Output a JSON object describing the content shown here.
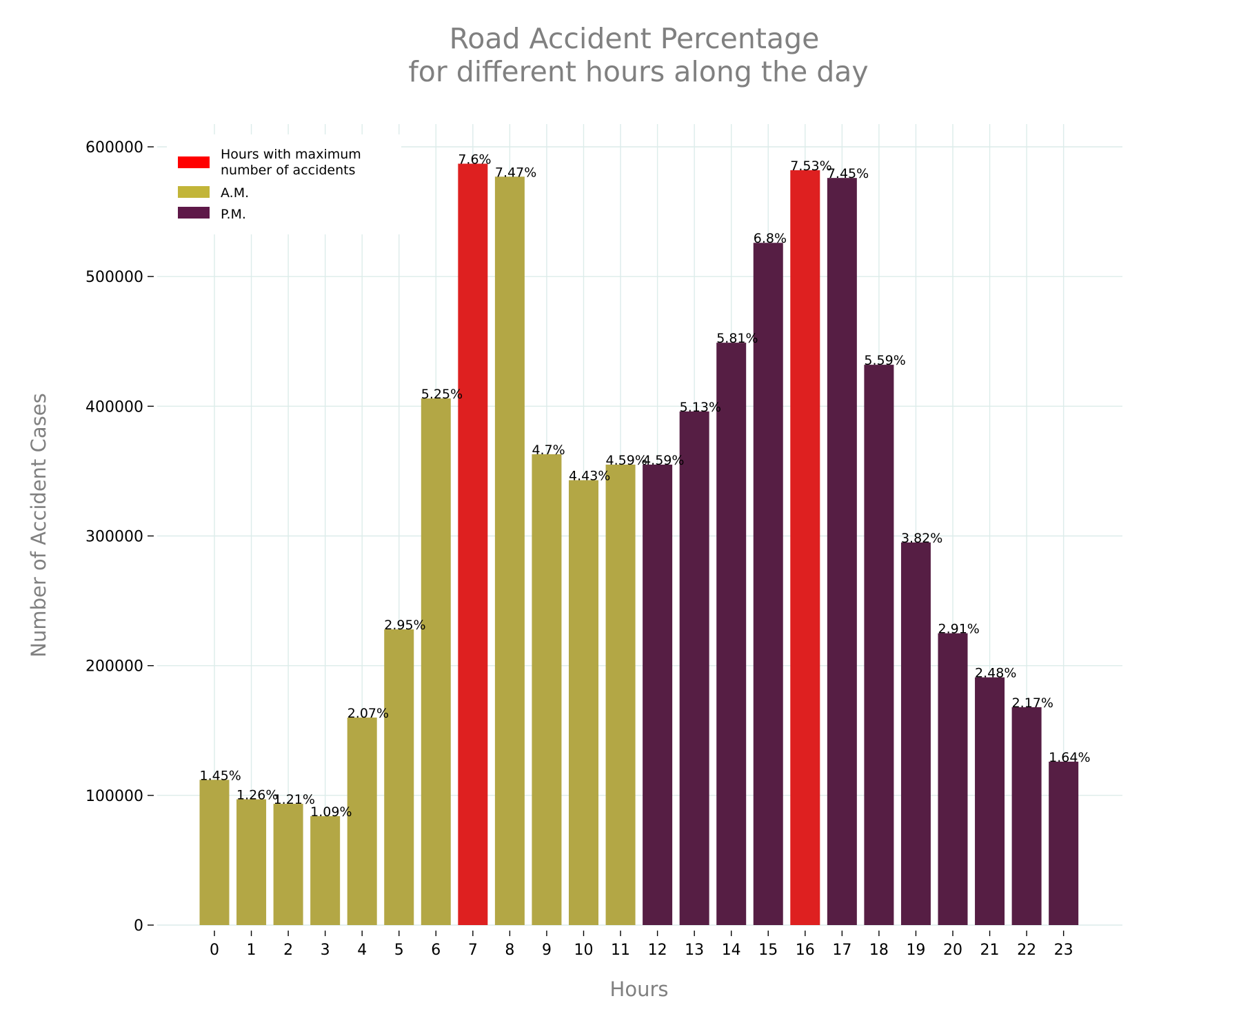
{
  "chart_data": {
    "type": "bar",
    "title_lines": [
      "Road Accident Percentage",
      "for different hours along the day"
    ],
    "xlabel": "Hours",
    "ylabel": "Number of Accident Cases",
    "ylim": [
      0,
      600000
    ],
    "yticks": [
      0,
      100000,
      200000,
      300000,
      400000,
      500000,
      600000
    ],
    "ytick_labels": [
      "0",
      "100000",
      "200000",
      "300000",
      "400000",
      "500000",
      "600000"
    ],
    "grid": true,
    "legend_position": "top-left",
    "legend": [
      {
        "label_lines": [
          "Hours with maximum",
          "number of accidents"
        ],
        "color": "#ff0000"
      },
      {
        "label_lines": [
          "A.M."
        ],
        "color": "#c2b539"
      },
      {
        "label_lines": [
          "P.M."
        ],
        "color": "#5e1848"
      }
    ],
    "categories": [
      "0",
      "1",
      "2",
      "3",
      "4",
      "5",
      "6",
      "7",
      "8",
      "9",
      "10",
      "11",
      "12",
      "13",
      "14",
      "15",
      "16",
      "17",
      "18",
      "19",
      "20",
      "21",
      "22",
      "23"
    ],
    "values": [
      112000,
      97000,
      93500,
      84000,
      160000,
      228000,
      406000,
      587000,
      577000,
      363000,
      343000,
      355000,
      355000,
      396000,
      449000,
      526000,
      582000,
      576000,
      432000,
      295000,
      225000,
      191000,
      168000,
      126000
    ],
    "percent_labels": [
      "1.45%",
      "1.26%",
      "1.21%",
      "1.09%",
      "2.07%",
      "2.95%",
      "5.25%",
      "7.6%",
      "7.47%",
      "4.7%",
      "4.43%",
      "4.59%",
      "4.59%",
      "5.13%",
      "5.81%",
      "6.8%",
      "7.53%",
      "7.45%",
      "5.59%",
      "3.82%",
      "2.91%",
      "2.48%",
      "2.17%",
      "1.64%"
    ],
    "groups": [
      "am",
      "am",
      "am",
      "am",
      "am",
      "am",
      "am",
      "max",
      "am",
      "am",
      "am",
      "am",
      "pm",
      "pm",
      "pm",
      "pm",
      "max",
      "pm",
      "pm",
      "pm",
      "pm",
      "pm",
      "pm",
      "pm"
    ],
    "bar_colors": {
      "am": "#b3a745",
      "pm": "#561e44",
      "max": "#de2020"
    }
  }
}
